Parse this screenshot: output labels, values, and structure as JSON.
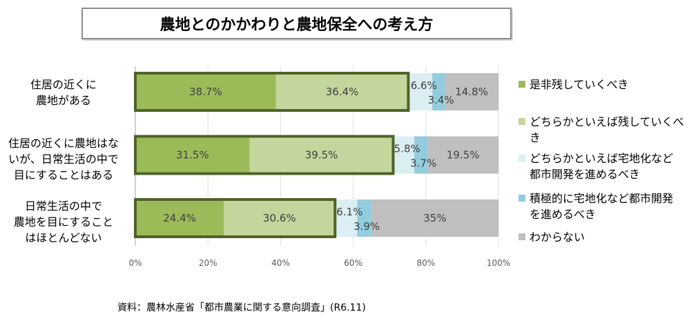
{
  "chart_data": {
    "type": "bar",
    "orientation": "horizontal",
    "stacking": "percent",
    "title": "農地とのかかわりと農地保全への考え方",
    "categories": [
      "住居の近くに\n農地がある",
      "住居の近くに農地はな\nいが、日常生活の中で\n目にすることはある",
      "日常生活の中で\n農地を目にすること\nはほとんどない"
    ],
    "series": [
      {
        "name": "是非残していくべき",
        "color": "#9BBB59",
        "values": [
          38.7,
          31.5,
          24.4
        ]
      },
      {
        "name": "どちらかといえば残していくべき",
        "color": "#C3D69B",
        "values": [
          36.4,
          39.5,
          30.6
        ]
      },
      {
        "name": "どちらかといえば宅地化など都市開発を進めるべき",
        "color": "#DBEEF4",
        "values": [
          6.6,
          5.8,
          6.1
        ]
      },
      {
        "name": "積極的に宅地化など都市開発を進めるべき",
        "color": "#93CDDD",
        "values": [
          3.4,
          3.7,
          3.9
        ]
      },
      {
        "name": "わからない",
        "color": "#BFBFBF",
        "values": [
          14.8,
          19.5,
          35
        ]
      }
    ],
    "unit": "%",
    "xlim": [
      0,
      100
    ],
    "xticks": [
      0,
      20,
      40,
      60,
      80,
      100
    ],
    "xtick_labels": [
      "0%",
      "20%",
      "40%",
      "60%",
      "80%",
      "100%"
    ],
    "data_labels": true,
    "grid": true,
    "legend_position": "right",
    "emphasis": {
      "series_indices": [
        0,
        1
      ],
      "border_color": "#4F6228"
    },
    "source_note": "資料：農林水産省「都市農業に関する意向調査」(R6.11)"
  }
}
